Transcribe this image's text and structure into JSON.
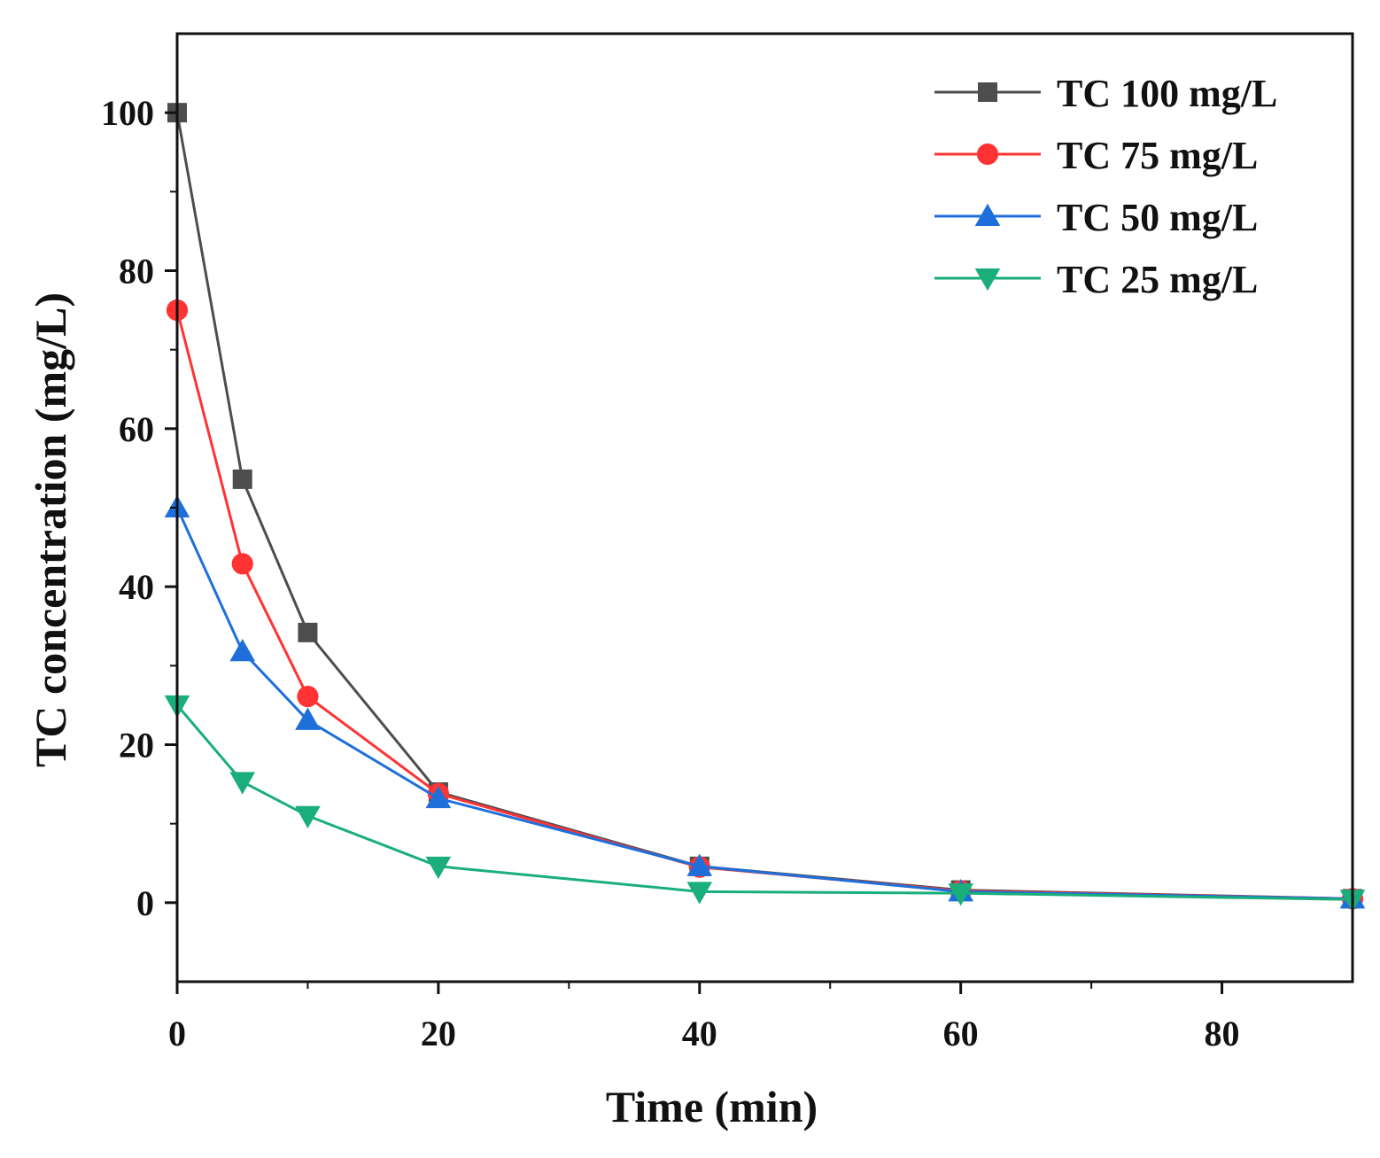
{
  "chart_data": {
    "type": "line",
    "title": "",
    "xlabel": "Time (min)",
    "ylabel": "TC concentration (mg/L)",
    "xlim": [
      0,
      90
    ],
    "ylim": [
      -10,
      110
    ],
    "xticks": [
      0,
      20,
      40,
      60,
      80
    ],
    "yticks": [
      0,
      20,
      40,
      60,
      80,
      100
    ],
    "x": [
      0,
      5,
      10,
      20,
      40,
      60,
      90
    ],
    "grid": false,
    "legend_position": "top-right",
    "series": [
      {
        "name": "TC 100 mg/L",
        "color": "#4d4d4d",
        "marker": "square",
        "values": [
          100,
          53.6,
          34.2,
          14.0,
          4.6,
          1.6,
          0.5
        ]
      },
      {
        "name": "TC 75 mg/L",
        "color": "#ff3333",
        "marker": "circle",
        "values": [
          75,
          42.9,
          26.1,
          13.8,
          4.5,
          1.5,
          0.5
        ]
      },
      {
        "name": "TC 50 mg/L",
        "color": "#1f6fdb",
        "marker": "triangle-up",
        "values": [
          50,
          31.8,
          23.1,
          13.2,
          4.6,
          1.4,
          0.5
        ]
      },
      {
        "name": "TC 25 mg/L",
        "color": "#1aae7a",
        "marker": "triangle-down",
        "values": [
          25,
          15.3,
          11.0,
          4.6,
          1.4,
          1.2,
          0.4
        ]
      }
    ]
  }
}
